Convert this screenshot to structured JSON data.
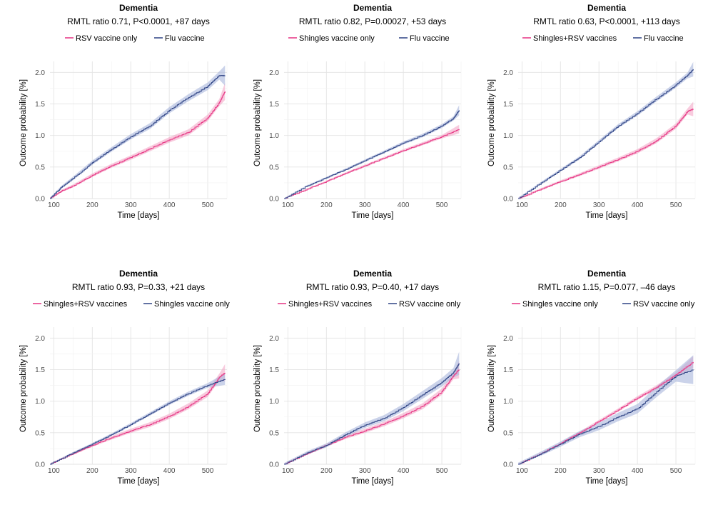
{
  "colors": {
    "pink": "#e8408a",
    "pink_band": "#f4a8c8",
    "blue": "#3a4e8c",
    "blue_band": "#a9b6dc",
    "purple_overlap": "#c9a7d8"
  },
  "chart_data": [
    {
      "type": "line",
      "title": "Dementia",
      "subtitle": "RMTL ratio 0.71, P<0.0001, +87 days",
      "xlabel": "Time [days]",
      "ylabel": "Outcome probability [%]",
      "xlim": [
        90,
        550
      ],
      "ylim": [
        0,
        2.0
      ],
      "xticks": [
        "100",
        "200",
        "300",
        "400",
        "500"
      ],
      "yticks": [
        "0.0",
        "0.5",
        "1.0",
        "1.5",
        "2.0"
      ],
      "grid": true,
      "legend_position": "top",
      "series": [
        {
          "name": "RSV vaccine only",
          "color": "pink",
          "x": [
            90,
            120,
            150,
            200,
            250,
            300,
            350,
            400,
            450,
            500,
            530,
            545
          ],
          "y": [
            0,
            0.12,
            0.2,
            0.37,
            0.52,
            0.65,
            0.79,
            0.93,
            1.05,
            1.28,
            1.52,
            1.7
          ],
          "band": 0.06
        },
        {
          "name": "Flu vaccine",
          "color": "blue",
          "x": [
            90,
            120,
            150,
            200,
            250,
            300,
            350,
            400,
            450,
            500,
            530,
            545
          ],
          "y": [
            0,
            0.18,
            0.32,
            0.57,
            0.78,
            0.98,
            1.15,
            1.4,
            1.6,
            1.78,
            1.95,
            1.95
          ],
          "band": 0.07
        }
      ]
    },
    {
      "type": "line",
      "title": "Dementia",
      "subtitle": "RMTL ratio 0.82, P=0.00027, +53 days",
      "xlabel": "Time [days]",
      "ylabel": "Outcome probability [%]",
      "xlim": [
        90,
        550
      ],
      "ylim": [
        0,
        2.0
      ],
      "xticks": [
        "100",
        "200",
        "300",
        "400",
        "500"
      ],
      "yticks": [
        "0.0",
        "0.5",
        "1.0",
        "1.5",
        "2.0"
      ],
      "grid": true,
      "legend_position": "top",
      "series": [
        {
          "name": "Shingles vaccine only",
          "color": "pink",
          "x": [
            90,
            150,
            200,
            250,
            300,
            350,
            400,
            450,
            500,
            545
          ],
          "y": [
            0,
            0.15,
            0.27,
            0.4,
            0.52,
            0.64,
            0.76,
            0.87,
            0.98,
            1.1
          ],
          "band": 0.03
        },
        {
          "name": "Flu vaccine",
          "color": "blue",
          "x": [
            90,
            150,
            200,
            250,
            300,
            350,
            400,
            450,
            500,
            530,
            545
          ],
          "y": [
            0,
            0.2,
            0.33,
            0.46,
            0.6,
            0.74,
            0.88,
            1.0,
            1.15,
            1.27,
            1.4
          ],
          "band": 0.035
        }
      ]
    },
    {
      "type": "line",
      "title": "Dementia",
      "subtitle": "RMTL ratio 0.63, P<0.0001, +113 days",
      "xlabel": "Time [days]",
      "ylabel": "Outcome probability [%]",
      "xlim": [
        90,
        550
      ],
      "ylim": [
        0,
        2.0
      ],
      "xticks": [
        "100",
        "200",
        "300",
        "400",
        "500"
      ],
      "yticks": [
        "0.0",
        "0.5",
        "1.0",
        "1.5",
        "2.0"
      ],
      "grid": true,
      "legend_position": "top",
      "series": [
        {
          "name": "Shingles+RSV vaccines",
          "color": "pink",
          "x": [
            90,
            150,
            200,
            250,
            300,
            350,
            400,
            450,
            500,
            530,
            545
          ],
          "y": [
            0,
            0.15,
            0.27,
            0.38,
            0.5,
            0.62,
            0.75,
            0.92,
            1.15,
            1.38,
            1.42
          ],
          "band": 0.05
        },
        {
          "name": "Flu vaccine",
          "color": "blue",
          "x": [
            90,
            150,
            200,
            250,
            300,
            350,
            400,
            450,
            500,
            530,
            545
          ],
          "y": [
            0,
            0.25,
            0.45,
            0.65,
            0.9,
            1.15,
            1.35,
            1.58,
            1.8,
            1.95,
            2.05
          ],
          "band": 0.05
        }
      ]
    },
    {
      "type": "line",
      "title": "Dementia",
      "subtitle": "RMTL ratio 0.93, P=0.33, +21 days",
      "xlabel": "Time [days]",
      "ylabel": "Outcome probability [%]",
      "xlim": [
        90,
        550
      ],
      "ylim": [
        0,
        2.0
      ],
      "xticks": [
        "100",
        "200",
        "300",
        "400",
        "500"
      ],
      "yticks": [
        "0.0",
        "0.5",
        "1.0",
        "1.5",
        "2.0"
      ],
      "grid": true,
      "legend_position": "top",
      "series": [
        {
          "name": "Shingles+RSV vaccines",
          "color": "pink",
          "x": [
            90,
            150,
            200,
            250,
            300,
            350,
            400,
            450,
            500,
            530,
            545
          ],
          "y": [
            0,
            0.17,
            0.3,
            0.42,
            0.53,
            0.63,
            0.76,
            0.92,
            1.12,
            1.38,
            1.45
          ],
          "band": 0.06
        },
        {
          "name": "Shingles vaccine only",
          "color": "blue",
          "x": [
            90,
            150,
            200,
            250,
            300,
            350,
            400,
            450,
            500,
            545
          ],
          "y": [
            0,
            0.18,
            0.32,
            0.47,
            0.63,
            0.8,
            0.97,
            1.12,
            1.25,
            1.35
          ],
          "band": 0.04
        }
      ]
    },
    {
      "type": "line",
      "title": "Dementia",
      "subtitle": "RMTL ratio 0.93, P=0.40, +17 days",
      "xlabel": "Time [days]",
      "ylabel": "Outcome probability [%]",
      "xlim": [
        90,
        550
      ],
      "ylim": [
        0,
        2.0
      ],
      "xticks": [
        "100",
        "200",
        "300",
        "400",
        "500"
      ],
      "yticks": [
        "0.0",
        "0.5",
        "1.0",
        "1.5",
        "2.0"
      ],
      "grid": true,
      "legend_position": "top",
      "series": [
        {
          "name": "Shingles+RSV vaccines",
          "color": "pink",
          "x": [
            90,
            150,
            200,
            250,
            300,
            350,
            400,
            450,
            500,
            530,
            545
          ],
          "y": [
            0,
            0.17,
            0.3,
            0.43,
            0.53,
            0.64,
            0.77,
            0.92,
            1.15,
            1.4,
            1.5
          ],
          "band": 0.06
        },
        {
          "name": "RSV vaccine only",
          "color": "blue",
          "x": [
            90,
            150,
            200,
            250,
            300,
            350,
            400,
            450,
            500,
            530,
            545
          ],
          "y": [
            0,
            0.18,
            0.3,
            0.47,
            0.62,
            0.73,
            0.9,
            1.1,
            1.3,
            1.45,
            1.6
          ],
          "band": 0.08
        }
      ]
    },
    {
      "type": "line",
      "title": "Dementia",
      "subtitle": "RMTL ratio 1.15, P=0.077, –46 days",
      "xlabel": "Time [days]",
      "ylabel": "Outcome probability [%]",
      "xlim": [
        90,
        550
      ],
      "ylim": [
        0,
        2.0
      ],
      "xticks": [
        "100",
        "200",
        "300",
        "400",
        "500"
      ],
      "yticks": [
        "0.0",
        "0.5",
        "1.0",
        "1.5",
        "2.0"
      ],
      "grid": true,
      "legend_position": "top",
      "series": [
        {
          "name": "Shingles vaccine only",
          "color": "pink",
          "x": [
            90,
            150,
            200,
            250,
            300,
            350,
            400,
            450,
            500,
            545
          ],
          "y": [
            0,
            0.17,
            0.33,
            0.5,
            0.68,
            0.86,
            1.05,
            1.22,
            1.42,
            1.62
          ],
          "band": 0.04
        },
        {
          "name": "RSV vaccine only",
          "color": "blue",
          "x": [
            90,
            150,
            200,
            250,
            300,
            350,
            400,
            450,
            500,
            545
          ],
          "y": [
            0,
            0.17,
            0.32,
            0.48,
            0.6,
            0.75,
            0.88,
            1.15,
            1.4,
            1.5
          ],
          "band": 0.1
        }
      ]
    }
  ]
}
